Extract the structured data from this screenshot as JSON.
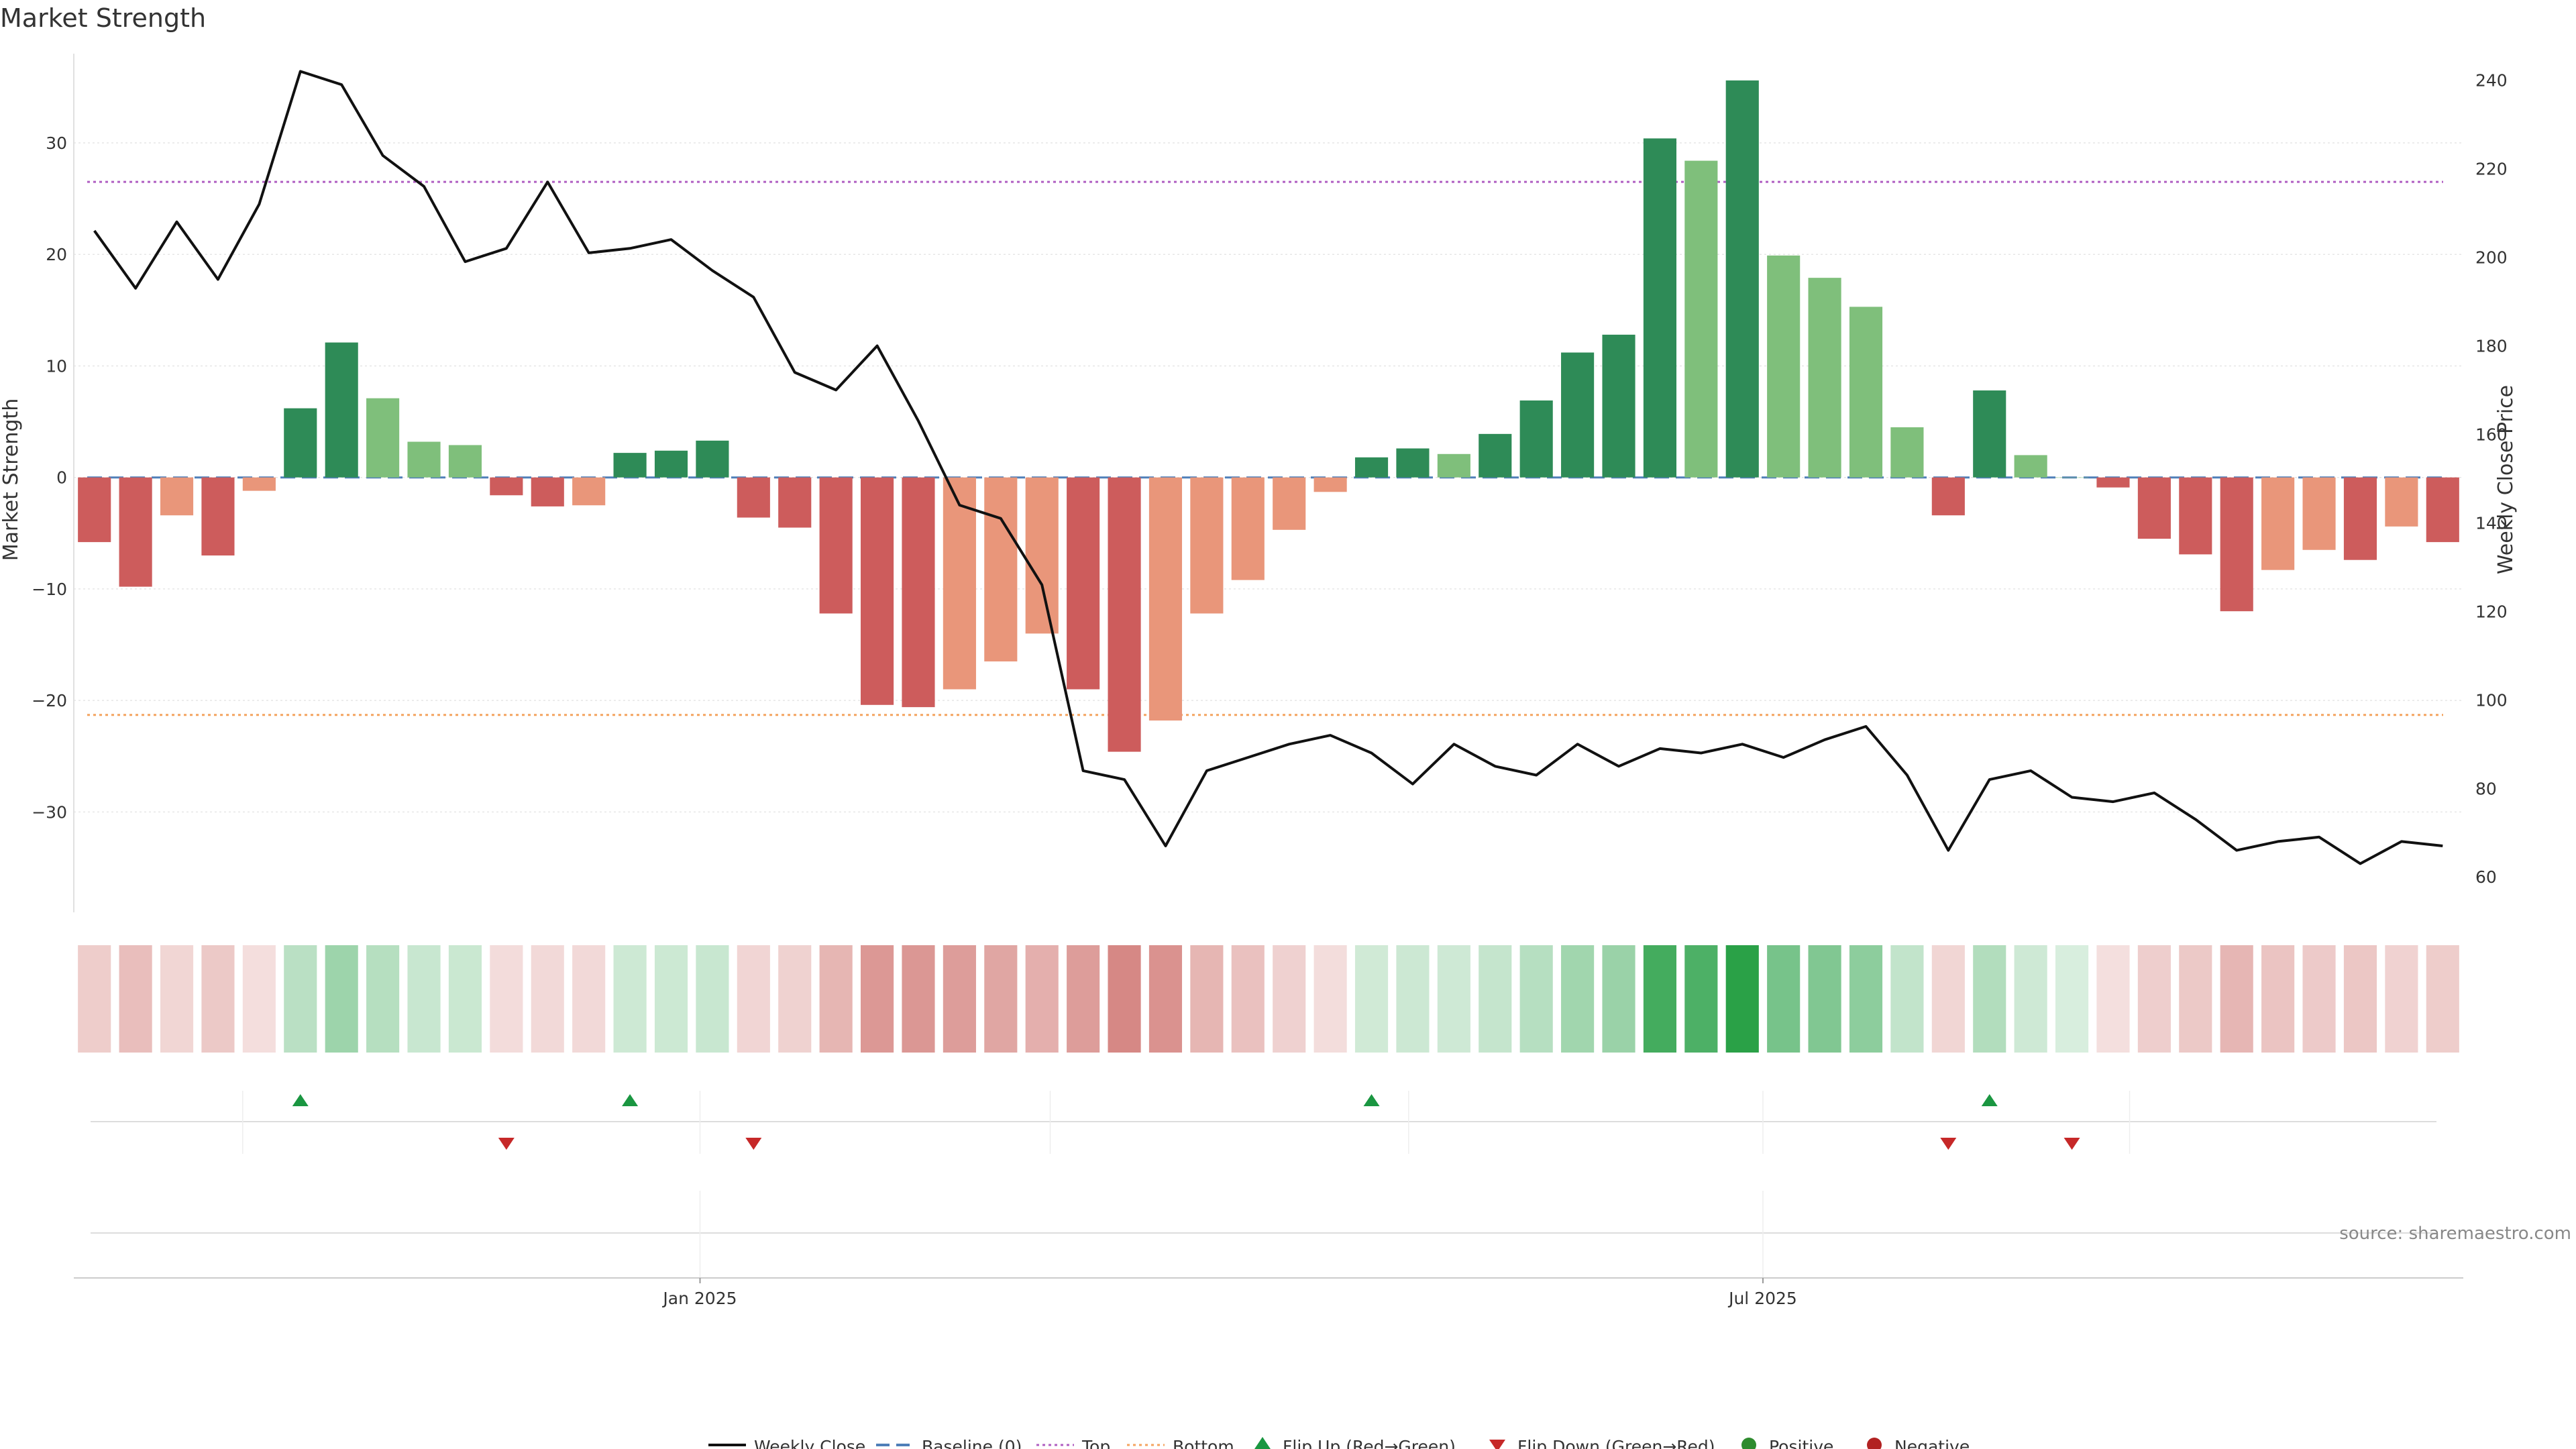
{
  "chart_data": {
    "type": "bar",
    "title": "Market Strength",
    "ylabel": "Market Strength",
    "y2label": "Weekly Close Price",
    "ylim": [
      -39,
      38
    ],
    "y2lim": [
      52,
      246
    ],
    "yticks": [
      -30,
      -20,
      -10,
      0,
      10,
      20,
      30
    ],
    "y2ticks": [
      60,
      80,
      100,
      120,
      140,
      160,
      180,
      200,
      220,
      240
    ],
    "yticklabels": [
      "−30",
      "−20",
      "−10",
      "0",
      "10",
      "20",
      "30"
    ],
    "y2ticklabels": [
      "60",
      "80",
      "100",
      "120",
      "140",
      "160",
      "180",
      "200",
      "220",
      "240"
    ],
    "xticks": [
      {
        "index": 14.7,
        "label": "Jan 2025"
      },
      {
        "index": 40.5,
        "label": "Jul 2025"
      }
    ],
    "top_line": 26.5,
    "bottom_line": -21.3,
    "source": "source: sharemaestro.com",
    "colors": {
      "dark_green": "#2e8b57",
      "light_green": "#7fbf7b",
      "dark_red": "#cd5c5c",
      "light_red": "#e9967a",
      "price": "#111111",
      "baseline": "#4f7fb8",
      "top": "#b05fc2",
      "bottom": "#f4a460",
      "flip_up": "#1a9641",
      "flip_down": "#c62828",
      "positive": "#2e8b2e",
      "negative": "#b22222"
    },
    "strength": [
      -5.8,
      -9.8,
      -3.4,
      -7.0,
      -1.2,
      6.2,
      12.1,
      7.1,
      3.2,
      2.9,
      -1.6,
      -2.6,
      -2.5,
      2.2,
      2.4,
      3.3,
      -3.6,
      -4.5,
      -12.2,
      -20.4,
      -20.6,
      -19.0,
      -16.5,
      -14.0,
      -19.0,
      -24.6,
      -21.8,
      -12.2,
      -9.2,
      -4.7,
      -1.3,
      1.8,
      2.6,
      2.1,
      3.9,
      6.9,
      11.2,
      12.8,
      30.4,
      28.4,
      35.6,
      19.9,
      17.9,
      15.3,
      4.5,
      -3.4,
      7.8,
      2.0,
      0.0,
      -0.9,
      -5.5,
      -6.9,
      -12.0,
      -8.3,
      -6.5,
      -7.4,
      -4.4,
      -5.8
    ],
    "bar_shade": [
      "D",
      "D",
      "L",
      "D",
      "L",
      "D",
      "D",
      "L",
      "L",
      "L",
      "D",
      "D",
      "L",
      "D",
      "D",
      "D",
      "D",
      "D",
      "D",
      "D",
      "D",
      "L",
      "L",
      "L",
      "D",
      "D",
      "L",
      "L",
      "L",
      "L",
      "L",
      "D",
      "D",
      "L",
      "D",
      "D",
      "D",
      "D",
      "D",
      "L",
      "D",
      "L",
      "L",
      "L",
      "L",
      "D",
      "D",
      "L",
      "L",
      "D",
      "D",
      "D",
      "D",
      "L",
      "L",
      "D",
      "L",
      "D"
    ],
    "weekly_close": [
      206,
      193,
      208,
      195,
      212,
      242,
      239,
      223,
      216,
      199,
      202,
      217,
      201,
      202,
      204,
      197,
      191,
      174,
      170,
      180,
      163,
      144,
      141,
      126,
      84,
      82,
      67,
      84,
      87,
      90,
      92,
      88,
      81,
      90,
      85,
      83,
      90,
      85,
      89,
      88,
      90,
      87,
      91,
      94,
      83,
      66,
      82,
      84,
      78,
      77,
      79,
      73,
      66,
      68,
      69,
      63,
      68,
      67
    ],
    "flip_up": [
      5,
      13,
      31,
      46
    ],
    "flip_down": [
      10,
      16,
      45,
      48
    ],
    "legend": [
      {
        "label": "Weekly Close",
        "kind": "line"
      },
      {
        "label": "Baseline (0)",
        "kind": "dash"
      },
      {
        "label": "Top",
        "kind": "dot"
      },
      {
        "label": "Bottom",
        "kind": "dot-bottom"
      },
      {
        "label": "Flip Up (Red→Green)",
        "kind": "tri-up"
      },
      {
        "label": "Flip Down (Green→Red)",
        "kind": "tri-down"
      },
      {
        "label": "Positive",
        "kind": "circle-pos"
      },
      {
        "label": "Negative",
        "kind": "circle-neg"
      }
    ]
  }
}
